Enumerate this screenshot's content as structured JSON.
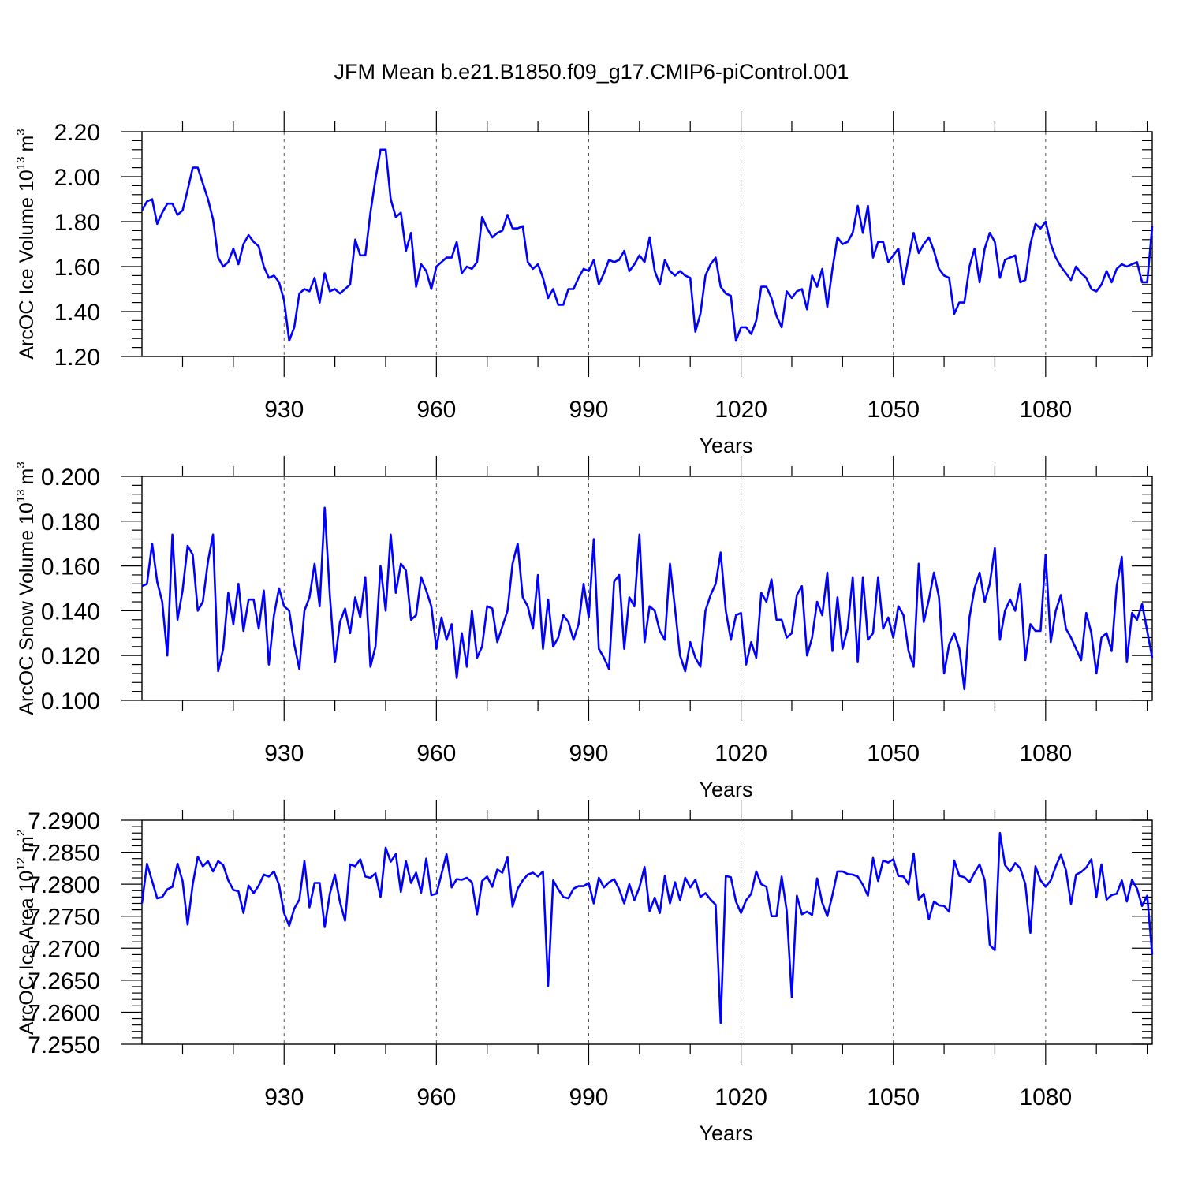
{
  "title": "JFM Mean b.e21.B1850.f09_g17.CMIP6-piControl.001",
  "colors": {
    "line": "#0000ff",
    "axis": "#000000",
    "grid": "#555555"
  },
  "chart_data": [
    {
      "type": "line",
      "ylabel_main": "ArcOC Ice Volume 10",
      "ylabel_exp": "13",
      "ylabel_unit": "m",
      "ylabel_unit_exp": "3",
      "xlabel": "Years",
      "xlim": [
        902,
        1101
      ],
      "ylim": [
        1.2,
        2.2
      ],
      "xticks": [
        930,
        960,
        990,
        1020,
        1050,
        1080
      ],
      "xtick_labels": [
        "930",
        "960",
        "990",
        "1020",
        "1050",
        "1080"
      ],
      "yticks": [
        1.2,
        1.4,
        1.6,
        1.8,
        2.0,
        2.2
      ],
      "ytick_labels": [
        "1.20",
        "1.40",
        "1.60",
        "1.80",
        "2.00",
        "2.20"
      ],
      "grid_x": true,
      "x_start": 902,
      "values": [
        1.85,
        1.89,
        1.9,
        1.79,
        1.84,
        1.88,
        1.88,
        1.83,
        1.85,
        1.94,
        2.04,
        2.04,
        1.97,
        1.9,
        1.81,
        1.64,
        1.6,
        1.62,
        1.68,
        1.61,
        1.7,
        1.74,
        1.71,
        1.69,
        1.6,
        1.55,
        1.56,
        1.53,
        1.45,
        1.27,
        1.33,
        1.48,
        1.5,
        1.49,
        1.55,
        1.44,
        1.57,
        1.49,
        1.5,
        1.48,
        1.5,
        1.52,
        1.72,
        1.65,
        1.65,
        1.84,
        1.99,
        2.12,
        2.12,
        1.9,
        1.82,
        1.84,
        1.67,
        1.75,
        1.51,
        1.61,
        1.58,
        1.5,
        1.6,
        1.62,
        1.64,
        1.64,
        1.71,
        1.57,
        1.6,
        1.59,
        1.62,
        1.82,
        1.77,
        1.73,
        1.75,
        1.76,
        1.83,
        1.77,
        1.77,
        1.78,
        1.62,
        1.59,
        1.61,
        1.55,
        1.46,
        1.5,
        1.43,
        1.43,
        1.5,
        1.5,
        1.55,
        1.59,
        1.58,
        1.63,
        1.52,
        1.57,
        1.63,
        1.62,
        1.63,
        1.67,
        1.58,
        1.61,
        1.65,
        1.62,
        1.73,
        1.58,
        1.52,
        1.63,
        1.58,
        1.56,
        1.58,
        1.56,
        1.55,
        1.31,
        1.39,
        1.56,
        1.61,
        1.64,
        1.51,
        1.48,
        1.47,
        1.27,
        1.33,
        1.33,
        1.3,
        1.36,
        1.51,
        1.51,
        1.46,
        1.38,
        1.33,
        1.49,
        1.46,
        1.49,
        1.5,
        1.41,
        1.56,
        1.51,
        1.59,
        1.42,
        1.59,
        1.73,
        1.7,
        1.71,
        1.75,
        1.87,
        1.75,
        1.87,
        1.64,
        1.71,
        1.71,
        1.62,
        1.65,
        1.68,
        1.52,
        1.64,
        1.75,
        1.66,
        1.7,
        1.73,
        1.67,
        1.59,
        1.56,
        1.55,
        1.39,
        1.44,
        1.44,
        1.6,
        1.68,
        1.53,
        1.68,
        1.75,
        1.71,
        1.55,
        1.63,
        1.64,
        1.65,
        1.53,
        1.54,
        1.7,
        1.79,
        1.77,
        1.8,
        1.7,
        1.64,
        1.6,
        1.57,
        1.54,
        1.6,
        1.57,
        1.55,
        1.5,
        1.49,
        1.52,
        1.58,
        1.53,
        1.59,
        1.61,
        1.6,
        1.61,
        1.62,
        1.53,
        1.53,
        1.78
      ]
    },
    {
      "type": "line",
      "ylabel_main": "ArcOC Snow Volume 10",
      "ylabel_exp": "13",
      "ylabel_unit": "m",
      "ylabel_unit_exp": "3",
      "xlabel": "Years",
      "xlim": [
        902,
        1101
      ],
      "ylim": [
        0.1,
        0.2
      ],
      "xticks": [
        930,
        960,
        990,
        1020,
        1050,
        1080
      ],
      "xtick_labels": [
        "930",
        "960",
        "990",
        "1020",
        "1050",
        "1080"
      ],
      "yticks": [
        0.1,
        0.12,
        0.14,
        0.16,
        0.18,
        0.2
      ],
      "ytick_labels": [
        "0.100",
        "0.120",
        "0.140",
        "0.160",
        "0.180",
        "0.200"
      ],
      "grid_x": true,
      "x_start": 902,
      "values": [
        0.151,
        0.152,
        0.17,
        0.153,
        0.144,
        0.12,
        0.174,
        0.136,
        0.149,
        0.169,
        0.165,
        0.14,
        0.144,
        0.162,
        0.174,
        0.113,
        0.123,
        0.148,
        0.134,
        0.152,
        0.131,
        0.145,
        0.145,
        0.132,
        0.149,
        0.116,
        0.138,
        0.15,
        0.142,
        0.14,
        0.125,
        0.114,
        0.14,
        0.146,
        0.161,
        0.142,
        0.186,
        0.147,
        0.117,
        0.135,
        0.141,
        0.13,
        0.146,
        0.137,
        0.155,
        0.115,
        0.124,
        0.16,
        0.14,
        0.174,
        0.148,
        0.161,
        0.158,
        0.136,
        0.138,
        0.155,
        0.149,
        0.142,
        0.123,
        0.137,
        0.127,
        0.134,
        0.11,
        0.13,
        0.115,
        0.14,
        0.119,
        0.124,
        0.142,
        0.141,
        0.126,
        0.133,
        0.14,
        0.161,
        0.17,
        0.146,
        0.142,
        0.132,
        0.156,
        0.123,
        0.145,
        0.124,
        0.128,
        0.138,
        0.135,
        0.127,
        0.134,
        0.152,
        0.137,
        0.172,
        0.123,
        0.119,
        0.114,
        0.153,
        0.156,
        0.123,
        0.146,
        0.142,
        0.174,
        0.126,
        0.142,
        0.14,
        0.131,
        0.127,
        0.161,
        0.141,
        0.12,
        0.113,
        0.126,
        0.119,
        0.115,
        0.14,
        0.147,
        0.152,
        0.166,
        0.14,
        0.127,
        0.138,
        0.139,
        0.116,
        0.126,
        0.119,
        0.148,
        0.144,
        0.154,
        0.136,
        0.136,
        0.128,
        0.13,
        0.147,
        0.151,
        0.12,
        0.128,
        0.144,
        0.138,
        0.157,
        0.122,
        0.146,
        0.123,
        0.132,
        0.155,
        0.117,
        0.155,
        0.127,
        0.13,
        0.155,
        0.132,
        0.137,
        0.128,
        0.142,
        0.138,
        0.122,
        0.115,
        0.161,
        0.135,
        0.145,
        0.157,
        0.146,
        0.112,
        0.125,
        0.13,
        0.123,
        0.105,
        0.137,
        0.15,
        0.157,
        0.144,
        0.152,
        0.168,
        0.127,
        0.14,
        0.145,
        0.14,
        0.152,
        0.118,
        0.134,
        0.131,
        0.131,
        0.165,
        0.126,
        0.14,
        0.147,
        0.132,
        0.128,
        0.123,
        0.118,
        0.139,
        0.13,
        0.112,
        0.128,
        0.13,
        0.122,
        0.151,
        0.164,
        0.117,
        0.139,
        0.136,
        0.143,
        0.131,
        0.119
      ]
    },
    {
      "type": "line",
      "ylabel_main": "ArcOC Ice Area 10",
      "ylabel_exp": "12",
      "ylabel_unit": "m",
      "ylabel_unit_exp": "2",
      "xlabel": "Years",
      "xlim": [
        902,
        1101
      ],
      "ylim": [
        7.255,
        7.29
      ],
      "xticks": [
        930,
        960,
        990,
        1020,
        1050,
        1080
      ],
      "xtick_labels": [
        "930",
        "960",
        "990",
        "1020",
        "1050",
        "1080"
      ],
      "yticks": [
        7.255,
        7.26,
        7.265,
        7.27,
        7.275,
        7.28,
        7.285,
        7.29
      ],
      "ytick_labels": [
        "7.2550",
        "7.2600",
        "7.2650",
        "7.2700",
        "7.2750",
        "7.2800",
        "7.2850",
        "7.2900"
      ],
      "grid_x": true,
      "x_start": 902,
      "values": [
        7.277,
        7.2832,
        7.2805,
        7.2778,
        7.278,
        7.2792,
        7.2796,
        7.2832,
        7.2805,
        7.2737,
        7.28,
        7.2843,
        7.2828,
        7.2836,
        7.282,
        7.2836,
        7.283,
        7.2806,
        7.2791,
        7.2789,
        7.2755,
        7.2798,
        7.2786,
        7.2798,
        7.2815,
        7.2812,
        7.282,
        7.2799,
        7.2755,
        7.2735,
        7.2762,
        7.2776,
        7.2836,
        7.2764,
        7.2802,
        7.2802,
        7.2733,
        7.2785,
        7.2815,
        7.2772,
        7.2743,
        7.2831,
        7.2828,
        7.2839,
        7.2812,
        7.281,
        7.2817,
        7.278,
        7.2857,
        7.2835,
        7.2847,
        7.2788,
        7.2836,
        7.2802,
        7.2818,
        7.2787,
        7.284,
        7.2783,
        7.2785,
        7.2816,
        7.2847,
        7.2795,
        7.2808,
        7.2807,
        7.281,
        7.2803,
        7.2753,
        7.2805,
        7.2812,
        7.2796,
        7.2823,
        7.2818,
        7.2842,
        7.2765,
        7.2793,
        7.2806,
        7.2815,
        7.2818,
        7.2812,
        7.282,
        7.2641,
        7.2806,
        7.2792,
        7.278,
        7.2778,
        7.2793,
        7.2797,
        7.2797,
        7.2802,
        7.277,
        7.281,
        7.2795,
        7.2803,
        7.2808,
        7.2792,
        7.277,
        7.28,
        7.2775,
        7.2795,
        7.2827,
        7.2758,
        7.2779,
        7.2755,
        7.2813,
        7.277,
        7.2803,
        7.2775,
        7.281,
        7.2795,
        7.2807,
        7.278,
        7.2786,
        7.2776,
        7.2768,
        7.2583,
        7.2813,
        7.2811,
        7.2773,
        7.2755,
        7.2775,
        7.2785,
        7.282,
        7.28,
        7.2796,
        7.275,
        7.275,
        7.2812,
        7.2759,
        7.2623,
        7.2782,
        7.2753,
        7.2757,
        7.2752,
        7.2809,
        7.2771,
        7.275,
        7.2783,
        7.282,
        7.282,
        7.2816,
        7.2815,
        7.2812,
        7.2799,
        7.2782,
        7.2841,
        7.2805,
        7.2837,
        7.2834,
        7.2839,
        7.2813,
        7.2812,
        7.28,
        7.2848,
        7.2776,
        7.2785,
        7.2745,
        7.2773,
        7.2767,
        7.2766,
        7.2757,
        7.2837,
        7.2813,
        7.2811,
        7.2803,
        7.2818,
        7.2831,
        7.2806,
        7.2705,
        7.2697,
        7.288,
        7.283,
        7.282,
        7.2833,
        7.2825,
        7.28,
        7.2724,
        7.2828,
        7.2806,
        7.2796,
        7.2806,
        7.2828,
        7.2846,
        7.2822,
        7.2769,
        7.2815,
        7.2819,
        7.2826,
        7.2839,
        7.278,
        7.2831,
        7.2776,
        7.2783,
        7.2785,
        7.2806,
        7.2773,
        7.2807,
        7.2793,
        7.2766,
        7.2782,
        7.269
      ]
    }
  ]
}
